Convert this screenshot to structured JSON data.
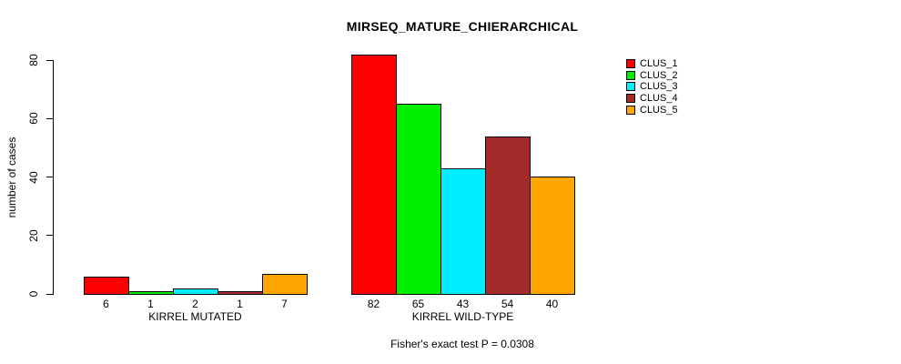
{
  "chart_data": {
    "type": "bar",
    "title": "MIRSEQ_MATURE_CHIERARCHICAL",
    "ylabel": "number of cases",
    "xlabel": "",
    "ylim": [
      0,
      80
    ],
    "yticks": [
      0,
      20,
      40,
      60,
      80
    ],
    "grid": false,
    "legend_position": "top-right",
    "bar_value_labels_shown": true,
    "categories": [
      "KIRREL MUTATED",
      "KIRREL WILD-TYPE"
    ],
    "series": [
      {
        "name": "CLUS_1",
        "color": "#ff0000",
        "values": [
          6,
          82
        ]
      },
      {
        "name": "CLUS_2",
        "color": "#00ee00",
        "values": [
          1,
          65
        ]
      },
      {
        "name": "CLUS_3",
        "color": "#00eeff",
        "values": [
          2,
          43
        ]
      },
      {
        "name": "CLUS_4",
        "color": "#a52a2a",
        "values": [
          1,
          54
        ]
      },
      {
        "name": "CLUS_5",
        "color": "#ffa500",
        "values": [
          7,
          40
        ]
      }
    ],
    "annotation": "Fisher's exact test P = 0.0308"
  }
}
